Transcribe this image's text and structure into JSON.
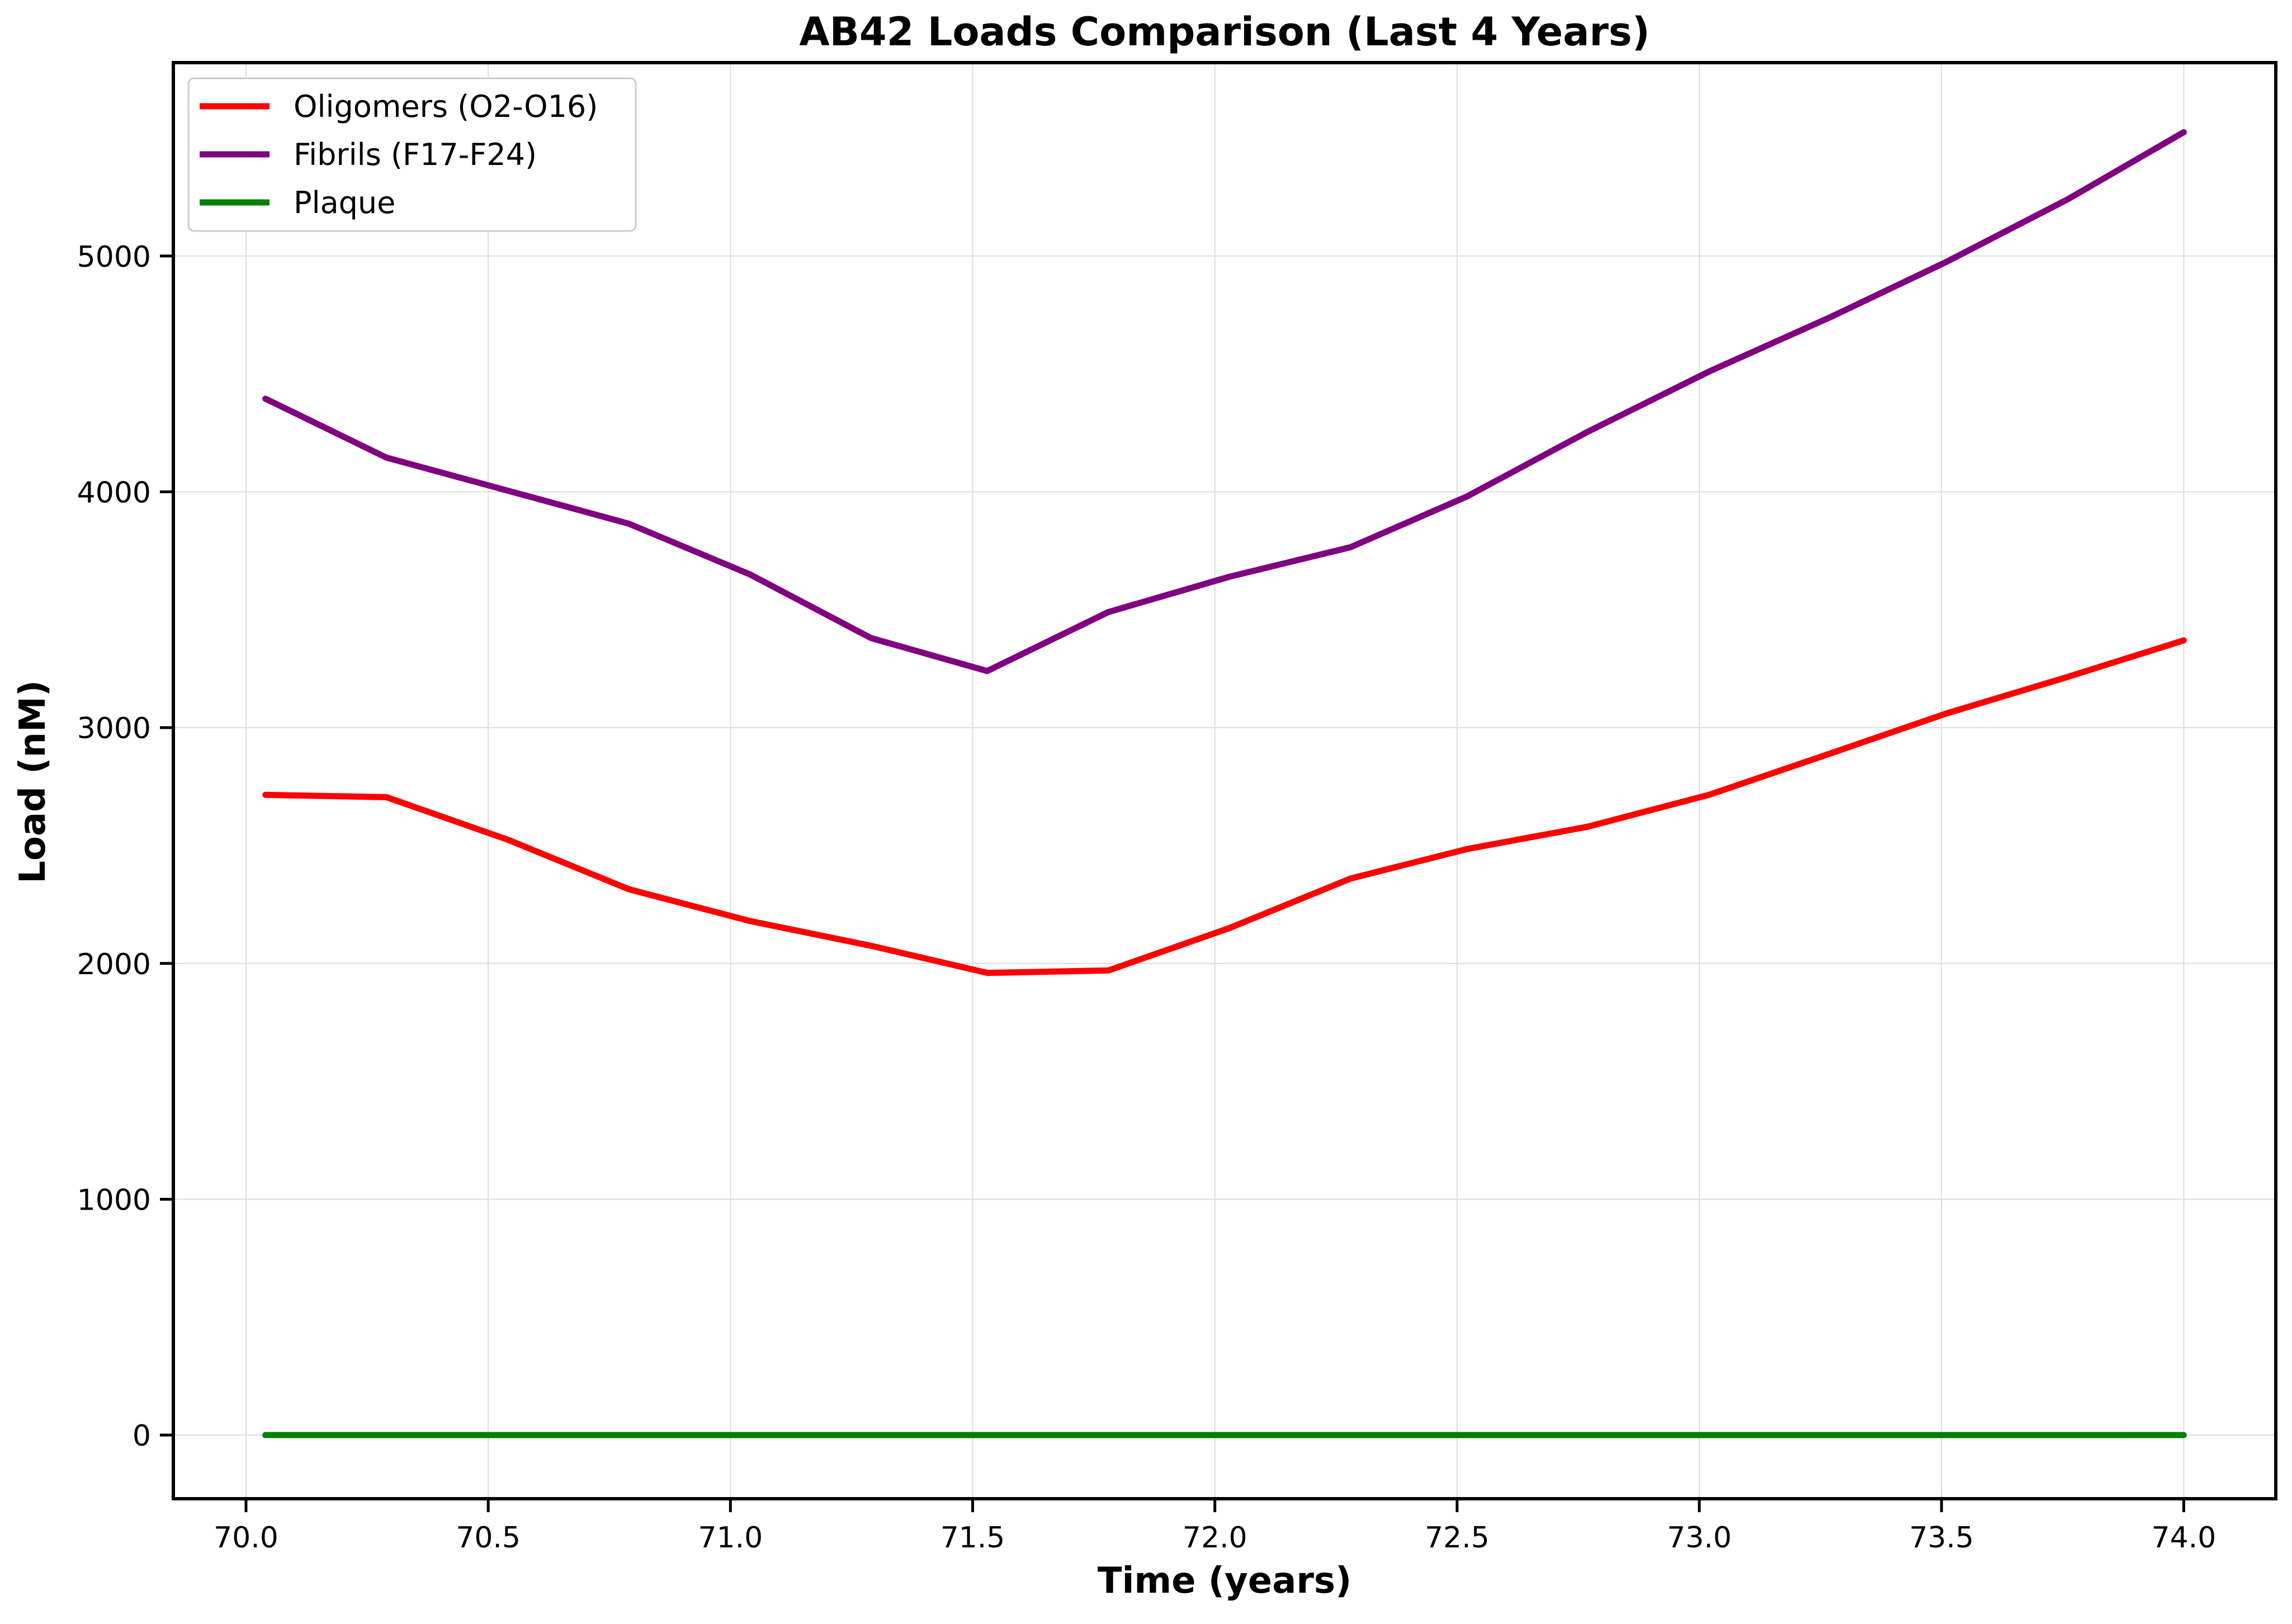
{
  "chart_data": {
    "type": "line",
    "title": "AB42 Loads Comparison (Last 4 Years)",
    "xlabel": "Time (years)",
    "ylabel": "Load (nM)",
    "xlim": [
      69.85,
      74.19
    ],
    "ylim": [
      -270,
      5820
    ],
    "xticks": [
      70.0,
      70.5,
      71.0,
      71.5,
      72.0,
      72.5,
      73.0,
      73.5,
      74.0
    ],
    "xtick_labels": [
      "70.0",
      "70.5",
      "71.0",
      "71.5",
      "72.0",
      "72.5",
      "73.0",
      "73.5",
      "74.0"
    ],
    "yticks": [
      0,
      1000,
      2000,
      3000,
      4000,
      5000
    ],
    "ytick_labels": [
      "0",
      "1000",
      "2000",
      "3000",
      "4000",
      "5000"
    ],
    "grid": true,
    "legend_position": "top-left",
    "x": [
      70.04,
      70.29,
      70.54,
      70.79,
      71.04,
      71.29,
      71.53,
      71.78,
      72.03,
      72.28,
      72.52,
      72.77,
      73.02,
      73.27,
      73.51,
      73.76,
      74.0
    ],
    "series": [
      {
        "name": "Oligomers (O2-O16)",
        "color": "#ff0000",
        "values": [
          2715,
          2705,
          2525,
          2315,
          2180,
          2075,
          1960,
          1970,
          2150,
          2360,
          2485,
          2580,
          2715,
          2890,
          3060,
          3215,
          3370
        ]
      },
      {
        "name": "Fibrils (F17-F24)",
        "color": "#800080",
        "values": [
          4395,
          4145,
          4005,
          3865,
          3650,
          3380,
          3240,
          3490,
          3640,
          3765,
          3980,
          4255,
          4510,
          4740,
          4975,
          5240,
          5525
        ]
      },
      {
        "name": "Plaque",
        "color": "#008000",
        "values": [
          0,
          0,
          0,
          0,
          0,
          0,
          0,
          0,
          0,
          0,
          0,
          0,
          0,
          0,
          0,
          0,
          0
        ]
      }
    ]
  }
}
